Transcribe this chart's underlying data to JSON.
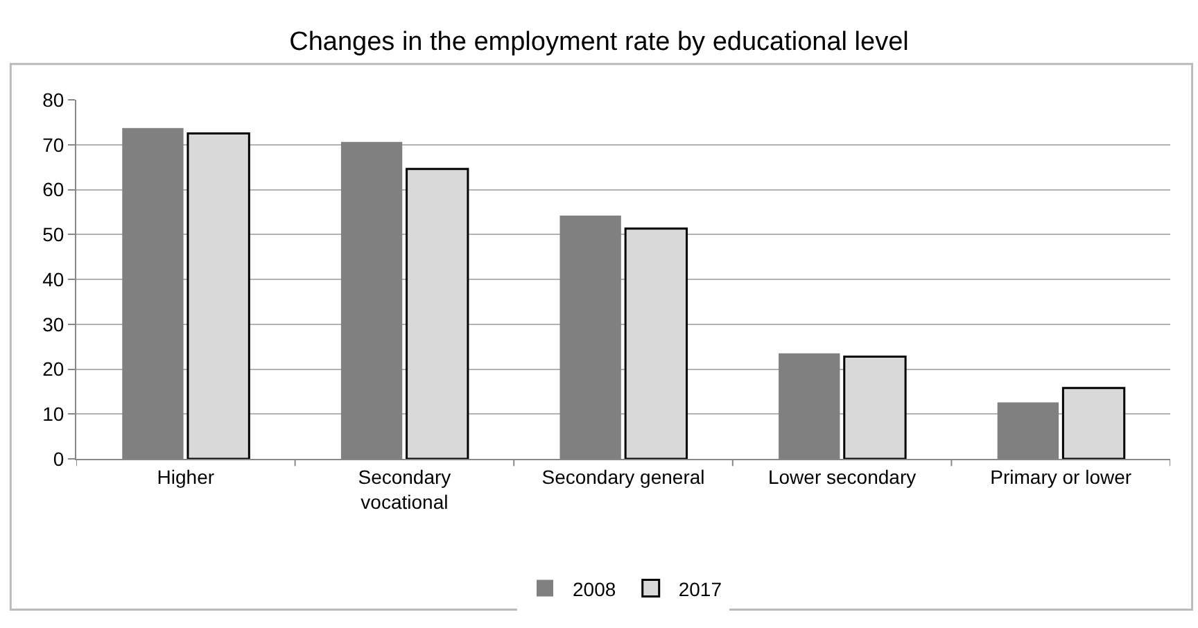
{
  "chart_data": {
    "type": "bar",
    "title": "Changes in the employment rate by educational level",
    "categories": [
      "Higher",
      "Secondary\nvocational",
      "Secondary general",
      "Lower secondary",
      "Primary or lower"
    ],
    "series": [
      {
        "name": "2008",
        "color": "#808080",
        "values": [
          73.7,
          70.6,
          54.2,
          23.5,
          12.6
        ]
      },
      {
        "name": "2017",
        "color": "#d9d9d9",
        "values": [
          72.5,
          64.6,
          51.3,
          22.8,
          15.8
        ]
      }
    ],
    "ylim": [
      0,
      80
    ],
    "yticks": [
      0,
      10,
      20,
      30,
      40,
      50,
      60,
      70,
      80
    ],
    "grid": "y",
    "legend": "bottom"
  }
}
